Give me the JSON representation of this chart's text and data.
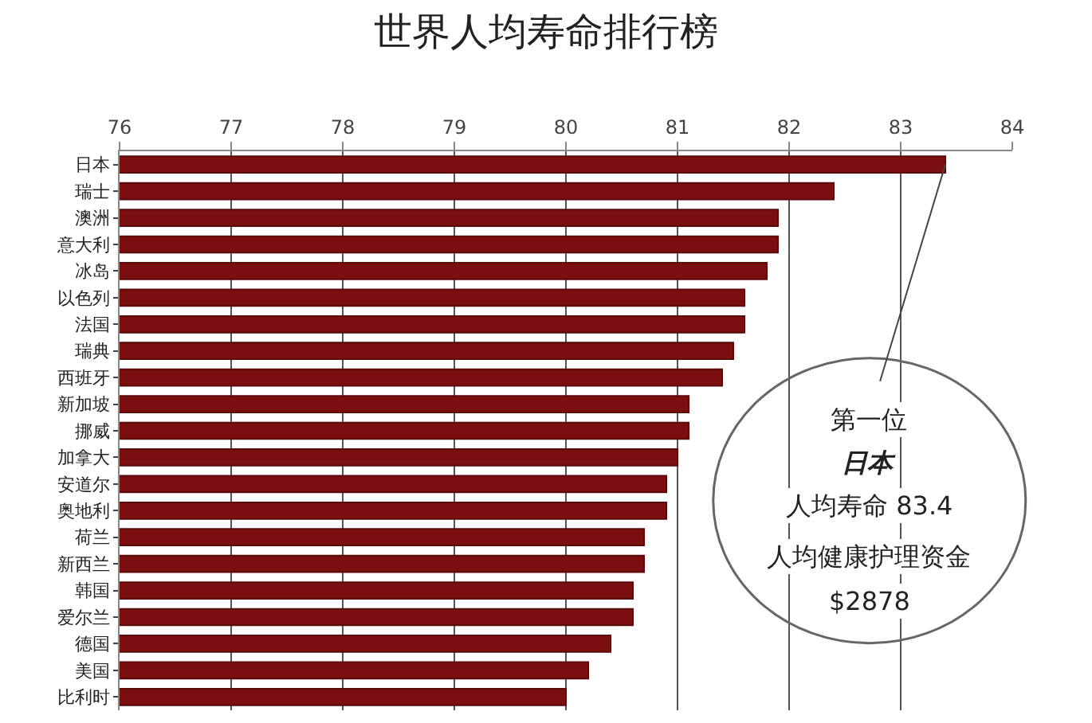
{
  "chart_data": {
    "type": "bar",
    "orientation": "horizontal",
    "title": "世界人均寿命排行榜",
    "categories": [
      "日本",
      "瑞士",
      "澳洲",
      "意大利",
      "冰岛",
      "以色列",
      "法国",
      "瑞典",
      "西班牙",
      "新加坡",
      "挪威",
      "加拿大",
      "安道尔",
      "奥地利",
      "荷兰",
      "新西兰",
      "韩国",
      "爱尔兰",
      "德国",
      "美国",
      "比利时"
    ],
    "values": [
      83.4,
      82.4,
      81.9,
      81.9,
      81.8,
      81.6,
      81.6,
      81.5,
      81.4,
      81.1,
      81.1,
      81.0,
      80.9,
      80.9,
      80.7,
      80.7,
      80.6,
      80.6,
      80.4,
      80.2,
      80.0
    ],
    "color": "#7b0f10",
    "xlim": [
      76,
      84
    ],
    "xticks": [
      76,
      77,
      78,
      79,
      80,
      81,
      82,
      83,
      84
    ],
    "grid": "x",
    "legend": false,
    "annotations": [
      {
        "text": "第一位",
        "x": 83.4,
        "y": "日本"
      },
      "日本",
      "人均寿命 83.4",
      "人均健康护理资金",
      "$2878"
    ]
  }
}
